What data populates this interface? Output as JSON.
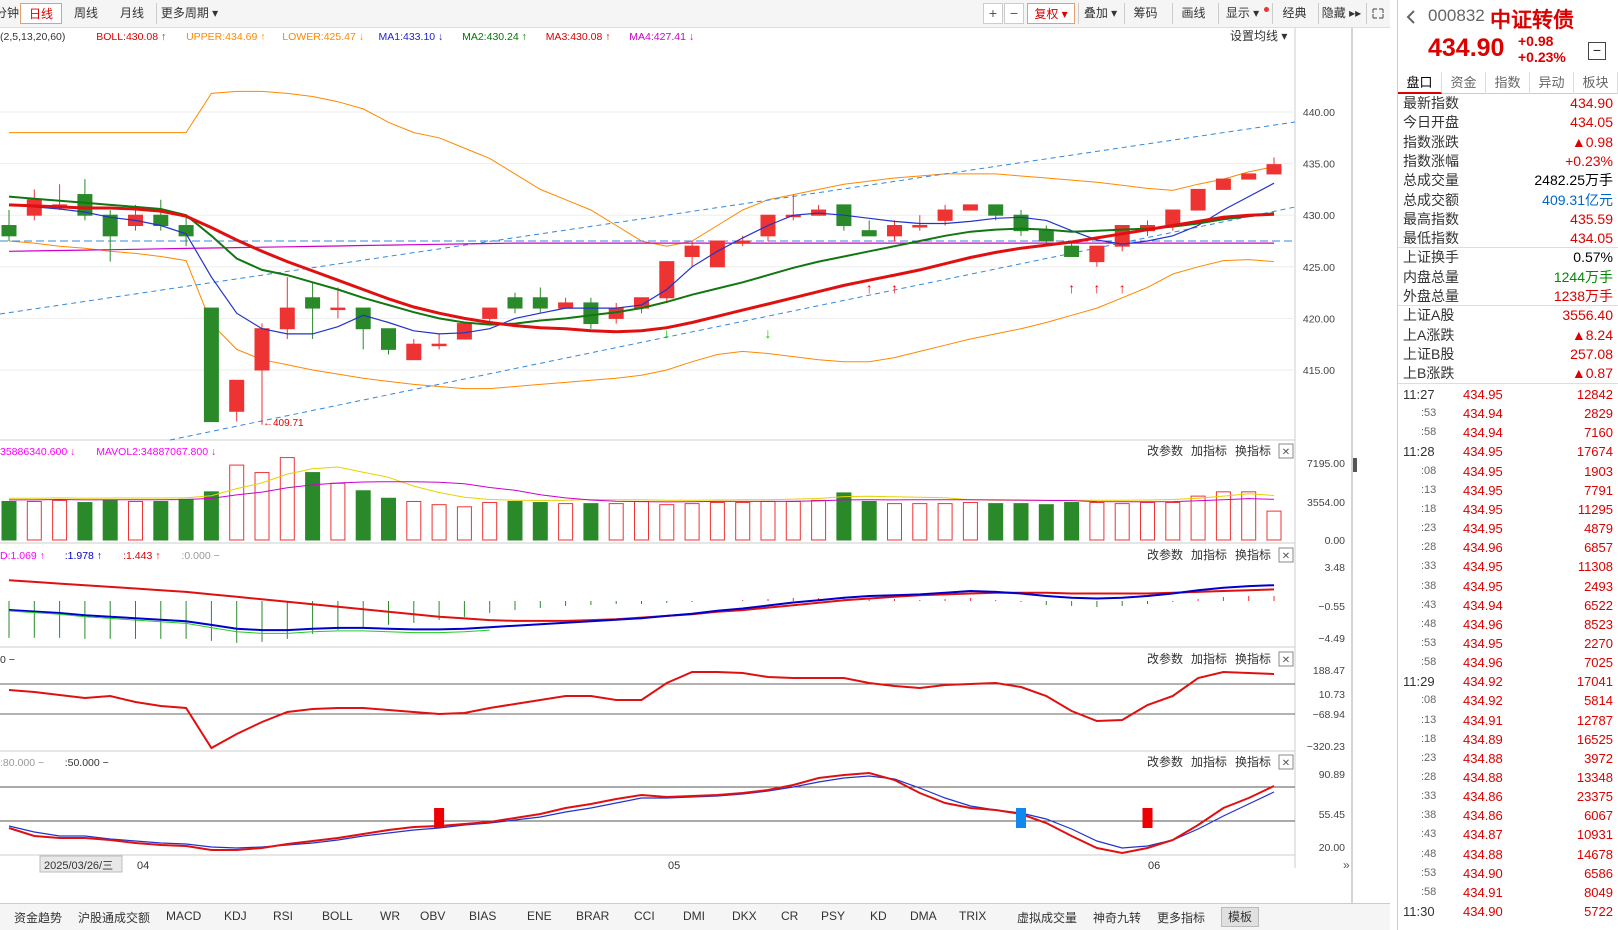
{
  "periods": [
    "分钟",
    "日线",
    "周线",
    "月线",
    "更多周期 ▾"
  ],
  "toolbar": {
    "plus": "+",
    "minus": "−",
    "fuquan": "复权 ▾",
    "diejia": "叠加 ▾",
    "chouma": "筹码",
    "huaxian": "画线",
    "xianshi": "显示 ▾",
    "jingdian": "经典",
    "yincang": "隐藏 ▸▸"
  },
  "legend_main": [
    {
      "t": "(2,5,13,20,60)",
      "c": "#333"
    },
    {
      "t": "BOLL:430.08 ↑",
      "c": "#d00"
    },
    {
      "t": "UPPER:434.69 ↑",
      "c": "#ff8800"
    },
    {
      "t": "LOWER:425.47 ↓",
      "c": "#ff8800"
    },
    {
      "t": "MA1:433.10 ↓",
      "c": "#2222cc"
    },
    {
      "t": "MA2:430.24 ↑",
      "c": "#007700"
    },
    {
      "t": "MA3:430.08 ↑",
      "c": "#d00"
    },
    {
      "t": "MA4:427.41 ↓",
      "c": "#cc00cc"
    }
  ],
  "settings_ma": "设置均线 ▾",
  "legend_vol": [
    {
      "t": "35886340.600 ↓",
      "c": "#ff00ff"
    },
    {
      "t": "MAVOL2:34887067.800 ↓",
      "c": "#ff00ff"
    }
  ],
  "legend_macd": [
    {
      "t": "D:1.069 ↑",
      "c": "#ff00ff"
    },
    {
      "t": ":1.978 ↑",
      "c": "#0000cc"
    },
    {
      "t": ":1.443 ↑",
      "c": "#d00"
    },
    {
      "t": ":0.000 −",
      "c": "#999"
    }
  ],
  "legend_cci": [
    {
      "t": "0 −",
      "c": "#333"
    }
  ],
  "legend_kdj": [
    {
      "t": ":80.000 −",
      "c": "#999"
    },
    {
      "t": ":50.000 −",
      "c": "#333"
    }
  ],
  "panel_btns": {
    "edit": "改参数",
    "add": "加指标",
    "swap": "换指标",
    "close": "✕"
  },
  "price_axis": [
    "440.00",
    "435.00",
    "430.00",
    "425.00",
    "420.00",
    "415.00"
  ],
  "min_label": "409.71",
  "vol_axis": [
    "7195.00",
    "3554.00",
    "0.00"
  ],
  "macd_axis": [
    "3.48",
    "−0.55",
    "−4.49"
  ],
  "cci_axis": [
    "188.47",
    "10.73",
    "−68.94",
    "−320.23"
  ],
  "kdj_axis": [
    "90.89",
    "55.45",
    "20.00"
  ],
  "date_axis": [
    "2025/03/26/三",
    "04",
    "05",
    "06"
  ],
  "bottom_tabs": [
    "资金趋势",
    "沪股通成交额",
    "MACD",
    "KDJ",
    "RSI",
    "BOLL",
    "WR",
    "OBV",
    "BIAS",
    "ENE",
    "BRAR",
    "CCI",
    "DMI",
    "DKX",
    "CR",
    "PSY",
    "KD",
    "DMA",
    "TRIX",
    "虚拟成交量",
    "神奇九转",
    "更多指标",
    "模板"
  ],
  "quote": {
    "code": "000832",
    "name": "中证转债",
    "price": "434.90",
    "chg": "+0.98",
    "pct": "+0.23%",
    "minus_btn": "−"
  },
  "rtabs": [
    "盘口",
    "资金",
    "指数",
    "异动",
    "板块"
  ],
  "rows": [
    {
      "l": "最新指数",
      "v": "434.90",
      "c": "#d00"
    },
    {
      "l": "今日开盘",
      "v": "434.05",
      "c": "#d00"
    },
    {
      "l": "指数涨跌",
      "v": "▲0.98",
      "c": "#d00"
    },
    {
      "l": "指数涨幅",
      "v": "+0.23%",
      "c": "#d00"
    },
    {
      "l": "总成交量",
      "v": "2482.25万手",
      "c": "#000"
    },
    {
      "l": "总成交额",
      "v": "409.31亿元",
      "c": "#0066cc"
    },
    {
      "l": "最高指数",
      "v": "435.59",
      "c": "#d00"
    },
    {
      "l": "最低指数",
      "v": "434.05",
      "c": "#d00"
    },
    {
      "l": "上证换手",
      "v": "0.57%",
      "c": "#000"
    },
    {
      "l": "内盘总量",
      "v": "1244万手",
      "c": "#008800"
    },
    {
      "l": "外盘总量",
      "v": "1238万手",
      "c": "#d00"
    },
    {
      "l": "上证A股",
      "v": "3556.40",
      "c": "#d00"
    },
    {
      "l": "上A涨跌",
      "v": "▲8.24",
      "c": "#d00"
    },
    {
      "l": "上证B股",
      "v": "257.08",
      "c": "#d00"
    },
    {
      "l": "上B涨跌",
      "v": "▲0.87",
      "c": "#d00"
    }
  ],
  "ticks": [
    {
      "t": "11:27",
      "p": "434.95",
      "v": "12842"
    },
    {
      "t": ":53",
      "p": "434.94",
      "v": "2829"
    },
    {
      "t": ":58",
      "p": "434.94",
      "v": "7160"
    },
    {
      "t": "11:28",
      "p": "434.95",
      "v": "17674"
    },
    {
      "t": ":08",
      "p": "434.95",
      "v": "1903"
    },
    {
      "t": ":13",
      "p": "434.95",
      "v": "7791"
    },
    {
      "t": ":18",
      "p": "434.95",
      "v": "11295"
    },
    {
      "t": ":23",
      "p": "434.95",
      "v": "4879"
    },
    {
      "t": ":28",
      "p": "434.96",
      "v": "6857"
    },
    {
      "t": ":33",
      "p": "434.95",
      "v": "11308"
    },
    {
      "t": ":38",
      "p": "434.95",
      "v": "2493"
    },
    {
      "t": ":43",
      "p": "434.94",
      "v": "6522"
    },
    {
      "t": ":48",
      "p": "434.96",
      "v": "8523"
    },
    {
      "t": ":53",
      "p": "434.95",
      "v": "2270"
    },
    {
      "t": ":58",
      "p": "434.96",
      "v": "7025"
    },
    {
      "t": "11:29",
      "p": "434.92",
      "v": "17041"
    },
    {
      "t": ":08",
      "p": "434.92",
      "v": "5814"
    },
    {
      "t": ":13",
      "p": "434.91",
      "v": "12787"
    },
    {
      "t": ":18",
      "p": "434.89",
      "v": "16525"
    },
    {
      "t": ":23",
      "p": "434.88",
      "v": "3972"
    },
    {
      "t": ":28",
      "p": "434.88",
      "v": "13348"
    },
    {
      "t": ":33",
      "p": "434.86",
      "v": "23375"
    },
    {
      "t": ":38",
      "p": "434.86",
      "v": "6067"
    },
    {
      "t": ":43",
      "p": "434.87",
      "v": "10931"
    },
    {
      "t": ":48",
      "p": "434.88",
      "v": "14678"
    },
    {
      "t": ":53",
      "p": "434.90",
      "v": "6586"
    },
    {
      "t": ":58",
      "p": "434.91",
      "v": "8049"
    },
    {
      "t": "11:30",
      "p": "434.90",
      "v": "5722"
    }
  ],
  "candles": [
    [
      429,
      428,
      430.5,
      427.5
    ],
    [
      430,
      431.5,
      432.5,
      429.5
    ],
    [
      431,
      431,
      433,
      430.5
    ],
    [
      432,
      430,
      433.5,
      429.5
    ],
    [
      430,
      428,
      430.5,
      425.5
    ],
    [
      429,
      430,
      431,
      428.5
    ],
    [
      430,
      429,
      431.5,
      428.5
    ],
    [
      429,
      428,
      430,
      427
    ],
    [
      421,
      410,
      421,
      410
    ],
    [
      411,
      414,
      414,
      410
    ],
    [
      415,
      419,
      419.5,
      409.7
    ],
    [
      419,
      421,
      424,
      418
    ],
    [
      422,
      421,
      423.5,
      418
    ],
    [
      421,
      421,
      423,
      420
    ],
    [
      421,
      419,
      421,
      417
    ],
    [
      419,
      417,
      419,
      416.5
    ],
    [
      416,
      417.5,
      418,
      416
    ],
    [
      417.5,
      417.5,
      418.5,
      417
    ],
    [
      418,
      419.5,
      419.5,
      418
    ],
    [
      420,
      421,
      421,
      419.5
    ],
    [
      422,
      421,
      422.5,
      420.5
    ],
    [
      422,
      421,
      423,
      420.5
    ],
    [
      421,
      421.5,
      422,
      421
    ],
    [
      421.5,
      419.5,
      422,
      419
    ],
    [
      420,
      421,
      421.5,
      419.5
    ],
    [
      421,
      422,
      422,
      420.5
    ],
    [
      422,
      425.5,
      425.5,
      421.5
    ],
    [
      426,
      427,
      427.5,
      425
    ],
    [
      425,
      427.5,
      427.5,
      425
    ],
    [
      427.5,
      427.5,
      428,
      427
    ],
    [
      428,
      430,
      430,
      427.5
    ],
    [
      430,
      430,
      432,
      429.5
    ],
    [
      430,
      430.5,
      431,
      430
    ],
    [
      431,
      429,
      431,
      428.5
    ],
    [
      428.5,
      428,
      429.5,
      428
    ],
    [
      428,
      429,
      429.5,
      427.5
    ],
    [
      429,
      429,
      430,
      428.5
    ],
    [
      429.5,
      430.5,
      431,
      429
    ],
    [
      430.5,
      431,
      431,
      430.5
    ],
    [
      431,
      430,
      431,
      429.5
    ],
    [
      430,
      428.5,
      430.5,
      428
    ],
    [
      428.5,
      427.5,
      429,
      427
    ],
    [
      427,
      426,
      427.5,
      426
    ],
    [
      425.5,
      427,
      427,
      425
    ],
    [
      427,
      429,
      429,
      426.5
    ],
    [
      428.5,
      429,
      429.5,
      428
    ],
    [
      429,
      430.5,
      430.5,
      428.5
    ],
    [
      430.5,
      432.5,
      432.5,
      430.5
    ],
    [
      432.5,
      433.5,
      433.5,
      432.5
    ],
    [
      433.5,
      434,
      434,
      433.5
    ],
    [
      434,
      434.9,
      435.6,
      434
    ]
  ]
}
